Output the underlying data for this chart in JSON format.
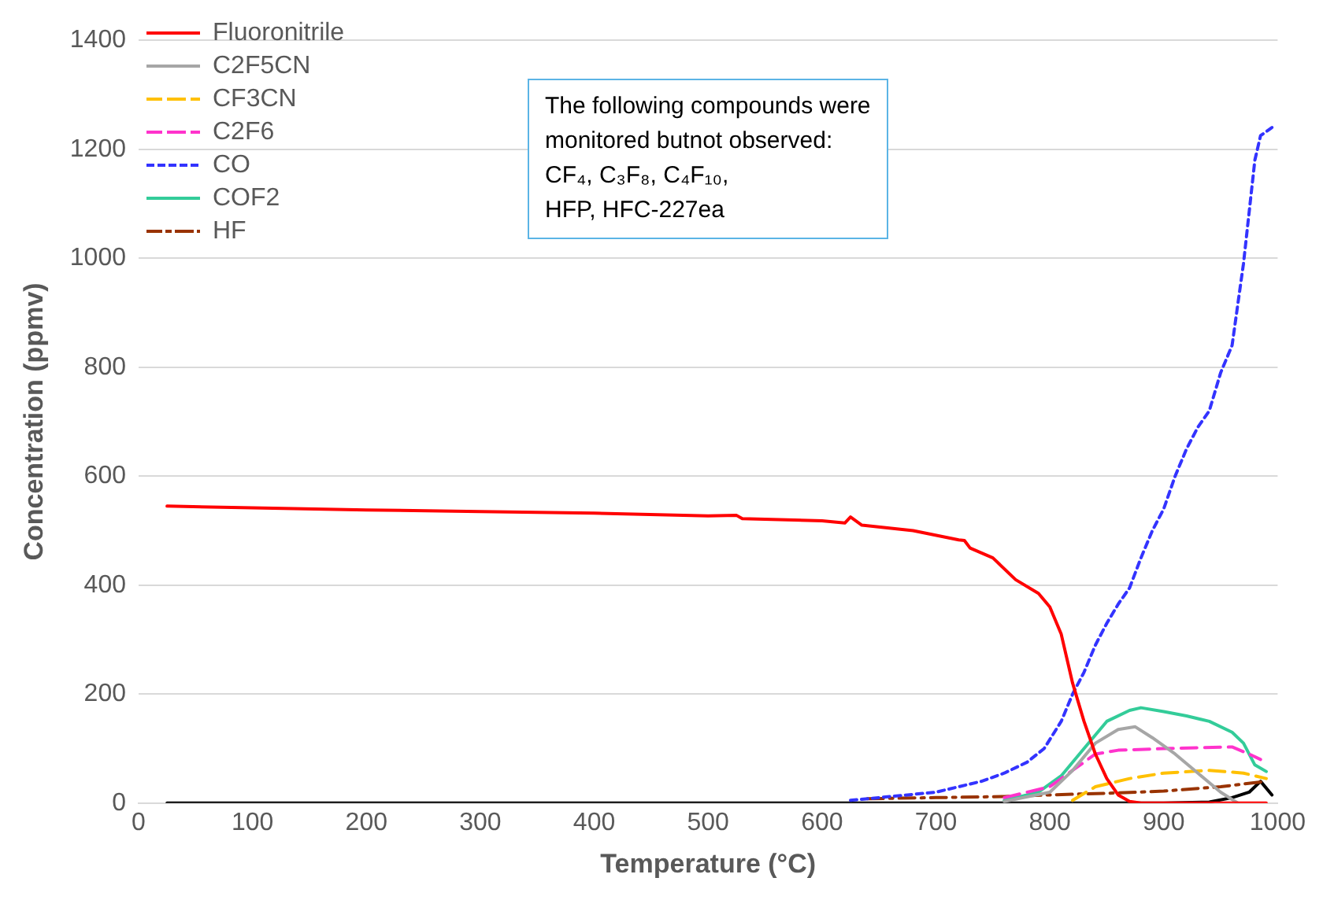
{
  "chart_data": {
    "type": "line",
    "xlabel": "Temperature (°C)",
    "ylabel": "Concentration (ppmv)",
    "xlim": [
      0,
      1000
    ],
    "xticks": [
      0,
      100,
      200,
      300,
      400,
      500,
      600,
      700,
      800,
      900,
      1000
    ],
    "ylim": [
      0,
      1400
    ],
    "yticks": [
      0,
      200,
      400,
      600,
      800,
      1000,
      1200,
      1400
    ],
    "grid": "y",
    "legend": "top left",
    "marker": "none",
    "annotations": [
      "The following compounds were\nmonitored butnot observed:\nCF₄, C₃F₈, C₄F₁₀,\nHFP, HFC-227ea"
    ],
    "series": [
      {
        "name": "Fluoronitrile",
        "color": "#ff0000",
        "line_style": "solid",
        "x": [
          25,
          100,
          200,
          300,
          400,
          500,
          525,
          530,
          600,
          620,
          625,
          635,
          680,
          720,
          725,
          730,
          750,
          770,
          790,
          800,
          810,
          820,
          830,
          840,
          850,
          860,
          870,
          880,
          990
        ],
        "values": [
          545,
          542,
          538,
          535,
          532,
          527,
          528,
          522,
          518,
          514,
          525,
          510,
          500,
          483,
          482,
          468,
          450,
          410,
          385,
          360,
          310,
          220,
          150,
          90,
          45,
          15,
          3,
          0,
          0
        ]
      },
      {
        "name": "C2F5CN",
        "color": "#a6a6a6",
        "line_style": "solid",
        "x": [
          760,
          800,
          820,
          840,
          860,
          875,
          890,
          910,
          930,
          950,
          965
        ],
        "values": [
          3,
          20,
          60,
          110,
          135,
          140,
          120,
          90,
          55,
          20,
          0
        ]
      },
      {
        "name": "CF3CN",
        "color": "#ffc000",
        "line_style": "dashed",
        "x": [
          820,
          840,
          870,
          900,
          940,
          970,
          990
        ],
        "values": [
          5,
          30,
          45,
          55,
          60,
          55,
          45
        ]
      },
      {
        "name": "C2F6",
        "color": "#ff33cc",
        "line_style": "dashed",
        "x": [
          760,
          800,
          820,
          840,
          860,
          900,
          960,
          975,
          985
        ],
        "values": [
          10,
          30,
          60,
          90,
          97,
          100,
          103,
          90,
          80
        ]
      },
      {
        "name": "CO",
        "color": "#3333ff",
        "line_style": "dotted",
        "x": [
          625,
          650,
          700,
          740,
          760,
          780,
          795,
          810,
          820,
          830,
          840,
          850,
          860,
          870,
          880,
          890,
          900,
          910,
          920,
          930,
          940,
          950,
          960,
          970,
          980,
          985,
          995
        ],
        "values": [
          5,
          10,
          20,
          40,
          55,
          75,
          100,
          150,
          200,
          240,
          290,
          330,
          365,
          395,
          450,
          500,
          540,
          600,
          650,
          690,
          720,
          790,
          840,
          990,
          1180,
          1225,
          1240
        ]
      },
      {
        "name": "COF2",
        "color": "#33cc99",
        "line_style": "solid",
        "x": [
          760,
          790,
          810,
          830,
          850,
          870,
          880,
          900,
          920,
          940,
          960,
          970,
          980,
          990
        ],
        "values": [
          5,
          20,
          50,
          100,
          150,
          170,
          175,
          168,
          160,
          150,
          130,
          110,
          70,
          58
        ]
      },
      {
        "name": "HF",
        "color": "#993300",
        "line_style": "dashdot",
        "x": [
          640,
          700,
          760,
          800,
          850,
          900,
          950,
          990
        ],
        "values": [
          8,
          10,
          12,
          15,
          18,
          22,
          30,
          40
        ]
      },
      {
        "color": "#000000",
        "line_style": "solid",
        "x": [
          25,
          900,
          940,
          960,
          975,
          985,
          995
        ],
        "values": [
          0,
          0,
          2,
          10,
          20,
          40,
          15
        ]
      }
    ]
  }
}
